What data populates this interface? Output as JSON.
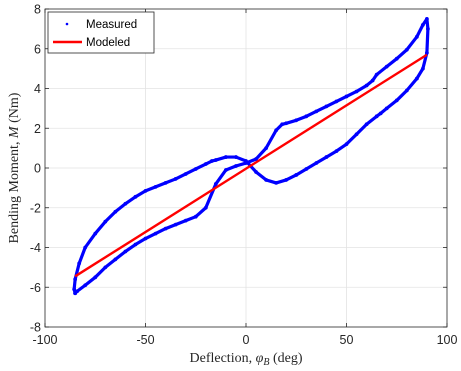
{
  "chart_data": {
    "type": "line",
    "title": "",
    "xlabel": "Deflection, φ_B (deg)",
    "ylabel": "Bending Moment, M (Nm)",
    "xlim": [
      -100,
      100
    ],
    "ylim": [
      -8,
      8
    ],
    "xticks": [
      "-100",
      "-50",
      "0",
      "50",
      "100"
    ],
    "yticks": [
      "-8",
      "-6",
      "-4",
      "-2",
      "0",
      "2",
      "4",
      "6",
      "8"
    ],
    "xtick_values": [
      -100,
      -50,
      0,
      50,
      100
    ],
    "ytick_values": [
      -8,
      -6,
      -4,
      -2,
      0,
      2,
      4,
      6,
      8
    ],
    "grid": true,
    "legend": "top-left",
    "series": [
      {
        "name": "Measured",
        "style": "dots",
        "color": "#0000ff",
        "x": [
          -85,
          -84,
          -80,
          -75,
          -70,
          -65,
          -60,
          -55,
          -50,
          -45,
          -40,
          -35,
          -30,
          -25,
          -20,
          -15,
          -10,
          -5,
          0,
          5,
          10,
          15,
          18,
          20,
          25,
          30,
          35,
          40,
          45,
          50,
          55,
          60,
          63,
          65,
          70,
          75,
          80,
          85,
          88,
          90,
          90.5,
          90,
          88,
          85,
          80,
          75,
          70,
          67,
          65,
          60,
          55,
          50,
          45,
          40,
          35,
          30,
          25,
          20,
          15,
          10,
          5,
          0,
          -5,
          -10,
          -15,
          -17,
          -20,
          -25,
          -30,
          -35,
          -40,
          -45,
          -50,
          -55,
          -60,
          -65,
          -70,
          -75,
          -80,
          -83,
          -85,
          -85.5,
          -85
        ],
        "y": [
          -6.3,
          -6.2,
          -5.9,
          -5.5,
          -5.0,
          -4.6,
          -4.2,
          -3.85,
          -3.55,
          -3.3,
          -3.05,
          -2.85,
          -2.65,
          -2.45,
          -2.0,
          -0.8,
          -0.1,
          0.1,
          0.25,
          0.45,
          1.0,
          1.9,
          2.2,
          2.25,
          2.4,
          2.6,
          2.85,
          3.1,
          3.35,
          3.6,
          3.85,
          4.15,
          4.4,
          4.7,
          5.1,
          5.5,
          5.95,
          6.6,
          7.2,
          7.5,
          7.0,
          5.8,
          5.0,
          4.5,
          3.9,
          3.4,
          3.0,
          2.75,
          2.6,
          2.2,
          1.7,
          1.2,
          0.85,
          0.55,
          0.25,
          -0.05,
          -0.35,
          -0.6,
          -0.75,
          -0.6,
          -0.2,
          0.35,
          0.55,
          0.55,
          0.4,
          0.35,
          0.2,
          -0.05,
          -0.3,
          -0.55,
          -0.75,
          -0.95,
          -1.15,
          -1.45,
          -1.8,
          -2.2,
          -2.7,
          -3.3,
          -4.0,
          -4.8,
          -5.6,
          -6.1,
          -6.3
        ]
      },
      {
        "name": "Modeled",
        "style": "line",
        "color": "#ff0000",
        "x": [
          -85,
          90
        ],
        "y": [
          -5.45,
          5.7
        ]
      }
    ]
  }
}
